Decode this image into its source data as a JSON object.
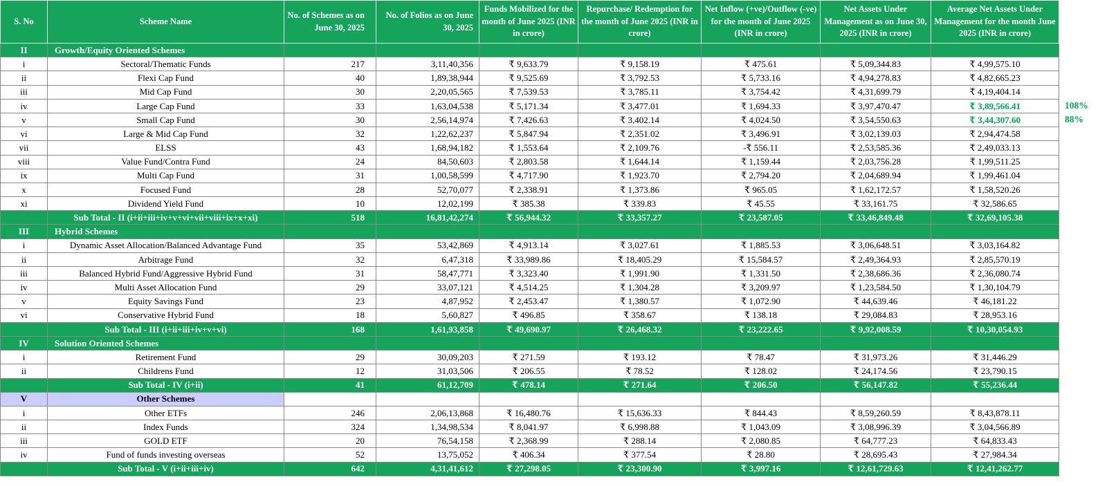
{
  "theme": {
    "header_green": "#16A45C",
    "lavender": "#CCCCFF",
    "highlight_green": "#00A651",
    "grid_line": "#8A8A8A"
  },
  "table": {
    "columns": [
      "S. No",
      "Scheme Name",
      "No. of Schemes as on June 30, 2025",
      "No. of Folios as on June 30, 2025",
      "Funds Mobilized for the month of June 2025 (INR in crore)",
      "Repurchase/ Redemption for the month of June 2025 (INR in crore)",
      "Net Inflow (+ve)/Outflow (-ve) for the month of June 2025 (INR in crore)",
      "Net Assets Under Management as on June 30, 2025 (INR in crore)",
      "Average Net Assets Under Management for the month June 2025 (INR in crore)"
    ],
    "rows": [
      {
        "type": "section",
        "style": "green",
        "sno": "II",
        "name": "Growth/Equity Oriented Schemes"
      },
      {
        "type": "data",
        "sno": "i",
        "name": "Sectoral/Thematic Funds",
        "values": [
          "217",
          "3,11,40,356",
          "₹ 9,633.79",
          "₹ 9,158.19",
          "₹ 475.61",
          "₹ 5,09,344.83",
          "₹ 4,99,575.10"
        ]
      },
      {
        "type": "data",
        "sno": "ii",
        "name": "Flexi Cap Fund",
        "values": [
          "40",
          "1,89,38,944",
          "₹ 9,525.69",
          "₹ 3,792.53",
          "₹ 5,733.16",
          "₹ 4,94,278.83",
          "₹ 4,82,665.23"
        ]
      },
      {
        "type": "data",
        "sno": "iii",
        "name": "Mid Cap Fund",
        "values": [
          "30",
          "2,20,05,565",
          "₹ 7,539.53",
          "₹ 3,785.11",
          "₹ 3,754.42",
          "₹ 4,31,699.79",
          "₹ 4,19,404.14"
        ]
      },
      {
        "type": "data",
        "sno": "iv",
        "name": "Large Cap Fund",
        "values": [
          "33",
          "1,63,04,538",
          "₹ 5,171.34",
          "₹ 3,477.01",
          "₹ 1,694.33",
          "₹ 3,97,470.47",
          "₹ 3,89,566.41"
        ],
        "highlight": [
          6
        ],
        "annotation": "108%"
      },
      {
        "type": "data",
        "sno": "v",
        "name": "Small Cap Fund",
        "values": [
          "30",
          "2,56,14,974",
          "₹ 7,426.63",
          "₹ 3,402.14",
          "₹ 4,024.50",
          "₹ 3,54,550.63",
          "₹ 3,44,307.60"
        ],
        "highlight": [
          6
        ],
        "annotation": "88%"
      },
      {
        "type": "data",
        "sno": "vi",
        "name": "Large & Mid Cap Fund",
        "values": [
          "32",
          "1,22,62,237",
          "₹ 5,847.94",
          "₹ 2,351.02",
          "₹ 3,496.91",
          "₹ 3,02,139.03",
          "₹ 2,94,474.58"
        ]
      },
      {
        "type": "data",
        "sno": "vii",
        "name": "ELSS",
        "values": [
          "43",
          "1,68,94,182",
          "₹ 1,553.64",
          "₹ 2,109.76",
          "-₹ 556.11",
          "₹ 2,53,585.36",
          "₹ 2,49,033.13"
        ]
      },
      {
        "type": "data",
        "sno": "viii",
        "name": "Value Fund/Contra Fund",
        "values": [
          "24",
          "84,50,603",
          "₹ 2,803.58",
          "₹ 1,644.14",
          "₹ 1,159.44",
          "₹ 2,03,756.28",
          "₹ 1,99,511.25"
        ]
      },
      {
        "type": "data",
        "sno": "ix",
        "name": "Multi Cap Fund",
        "values": [
          "31",
          "1,00,58,599",
          "₹ 4,717.90",
          "₹ 1,923.70",
          "₹ 2,794.20",
          "₹ 2,04,689.94",
          "₹ 1,99,461.04"
        ]
      },
      {
        "type": "data",
        "sno": "x",
        "name": "Focused Fund",
        "values": [
          "28",
          "52,70,077",
          "₹ 2,338.91",
          "₹ 1,373.86",
          "₹ 965.05",
          "₹ 1,62,172.57",
          "₹ 1,58,520.26"
        ]
      },
      {
        "type": "data",
        "sno": "xi",
        "name": "Dividend Yield Fund",
        "values": [
          "10",
          "12,02,199",
          "₹ 385.38",
          "₹ 339.83",
          "₹ 45.55",
          "₹ 33,161.75",
          "₹ 32,586.65"
        ]
      },
      {
        "type": "subtotal",
        "sno": "",
        "name": "Sub Total - II (i+ii+iii+iv+v+vi+vii+viii+ix+x+xi)",
        "values": [
          "518",
          "16,81,42,274",
          "₹ 56,944.32",
          "₹ 33,357.27",
          "₹ 23,587.05",
          "₹ 33,46,849.48",
          "₹ 32,69,105.38"
        ]
      },
      {
        "type": "section",
        "style": "green",
        "sno": "III",
        "name": "Hybrid Schemes"
      },
      {
        "type": "data",
        "sno": "i",
        "name": "Dynamic Asset Allocation/Balanced Advantage Fund",
        "values": [
          "35",
          "53,42,869",
          "₹ 4,913.14",
          "₹ 3,027.61",
          "₹ 1,885.53",
          "₹ 3,06,648.51",
          "₹ 3,03,164.82"
        ]
      },
      {
        "type": "data",
        "sno": "ii",
        "name": "Arbitrage Fund",
        "values": [
          "32",
          "6,47,318",
          "₹ 33,989.86",
          "₹ 18,405.29",
          "₹ 15,584.57",
          "₹ 2,49,364.93",
          "₹ 2,85,570.19"
        ]
      },
      {
        "type": "data",
        "sno": "iii",
        "name": "Balanced Hybrid Fund/Aggressive Hybrid Fund",
        "values": [
          "31",
          "58,47,771",
          "₹ 3,323.40",
          "₹ 1,991.90",
          "₹ 1,331.50",
          "₹ 2,38,686.36",
          "₹ 2,36,080.74"
        ]
      },
      {
        "type": "data",
        "sno": "iv",
        "name": "Multi Asset Allocation Fund",
        "values": [
          "29",
          "33,07,121",
          "₹ 4,514.25",
          "₹ 1,304.28",
          "₹ 3,209.97",
          "₹ 1,23,584.50",
          "₹ 1,30,104.79"
        ]
      },
      {
        "type": "data",
        "sno": "v",
        "name": "Equity Savings Fund",
        "values": [
          "23",
          "4,87,952",
          "₹ 2,453.47",
          "₹ 1,380.57",
          "₹ 1,072.90",
          "₹ 44,639.46",
          "₹ 46,181.22"
        ]
      },
      {
        "type": "data",
        "sno": "vi",
        "name": "Conservative Hybrid Fund",
        "values": [
          "18",
          "5,60,827",
          "₹ 496.85",
          "₹ 358.67",
          "₹ 138.18",
          "₹ 29,084.83",
          "₹ 28,953.16"
        ]
      },
      {
        "type": "subtotal",
        "sno": "",
        "name": "Sub Total - III (i+ii+iii+iv+v+vi)",
        "values": [
          "168",
          "1,61,93,858",
          "₹ 49,690.97",
          "₹ 26,468.32",
          "₹ 23,222.65",
          "₹ 9,92,008.59",
          "₹ 10,30,054.93"
        ]
      },
      {
        "type": "section",
        "style": "green",
        "sno": "IV",
        "name": "Solution Oriented Schemes"
      },
      {
        "type": "data",
        "sno": "i",
        "name": "Retirement Fund",
        "values": [
          "29",
          "30,09,203",
          "₹ 271.59",
          "₹ 193.12",
          "₹ 78.47",
          "₹ 31,973.26",
          "₹ 31,446.29"
        ]
      },
      {
        "type": "data",
        "sno": "ii",
        "name": "Childrens Fund",
        "values": [
          "12",
          "31,03,506",
          "₹ 206.55",
          "₹ 78.52",
          "₹ 128.02",
          "₹ 24,174.56",
          "₹ 23,790.15"
        ]
      },
      {
        "type": "subtotal",
        "sno": "",
        "name": "Sub Total - IV (i+ii)",
        "values": [
          "41",
          "61,12,709",
          "₹ 478.14",
          "₹ 271.64",
          "₹ 206.50",
          "₹ 56,147.82",
          "₹ 55,236.44"
        ]
      },
      {
        "type": "section",
        "style": "lavender",
        "sno": "V",
        "name": "Other Schemes"
      },
      {
        "type": "data",
        "sno": "i",
        "name": "Other ETFs",
        "values": [
          "246",
          "2,06,13,868",
          "₹ 16,480.76",
          "₹ 15,636.33",
          "₹ 844.43",
          "₹ 8,59,260.59",
          "₹ 8,43,878.11"
        ]
      },
      {
        "type": "data",
        "sno": "ii",
        "name": "Index Funds",
        "values": [
          "324",
          "1,34,98,534",
          "₹ 8,041.97",
          "₹ 6,998.88",
          "₹ 1,043.09",
          "₹ 3,08,996.39",
          "₹ 3,04,566.89"
        ]
      },
      {
        "type": "data",
        "sno": "iii",
        "name": "GOLD ETF",
        "values": [
          "20",
          "76,54,158",
          "₹ 2,368.99",
          "₹ 288.14",
          "₹ 2,080.85",
          "₹ 64,777.23",
          "₹ 64,833.43"
        ]
      },
      {
        "type": "data",
        "sno": "iv",
        "name": "Fund of funds investing overseas",
        "values": [
          "52",
          "13,75,052",
          "₹ 406.34",
          "₹ 377.54",
          "₹ 28.80",
          "₹ 28,695.43",
          "₹ 27,984.34"
        ]
      },
      {
        "type": "subtotal",
        "sno": "",
        "name": "Sub Total - V (i+ii+iii+iv)",
        "values": [
          "642",
          "4,31,41,612",
          "₹ 27,298.05",
          "₹ 23,300.90",
          "₹ 3,997.16",
          "₹ 12,61,729.63",
          "₹ 12,41,262.77"
        ]
      }
    ]
  }
}
